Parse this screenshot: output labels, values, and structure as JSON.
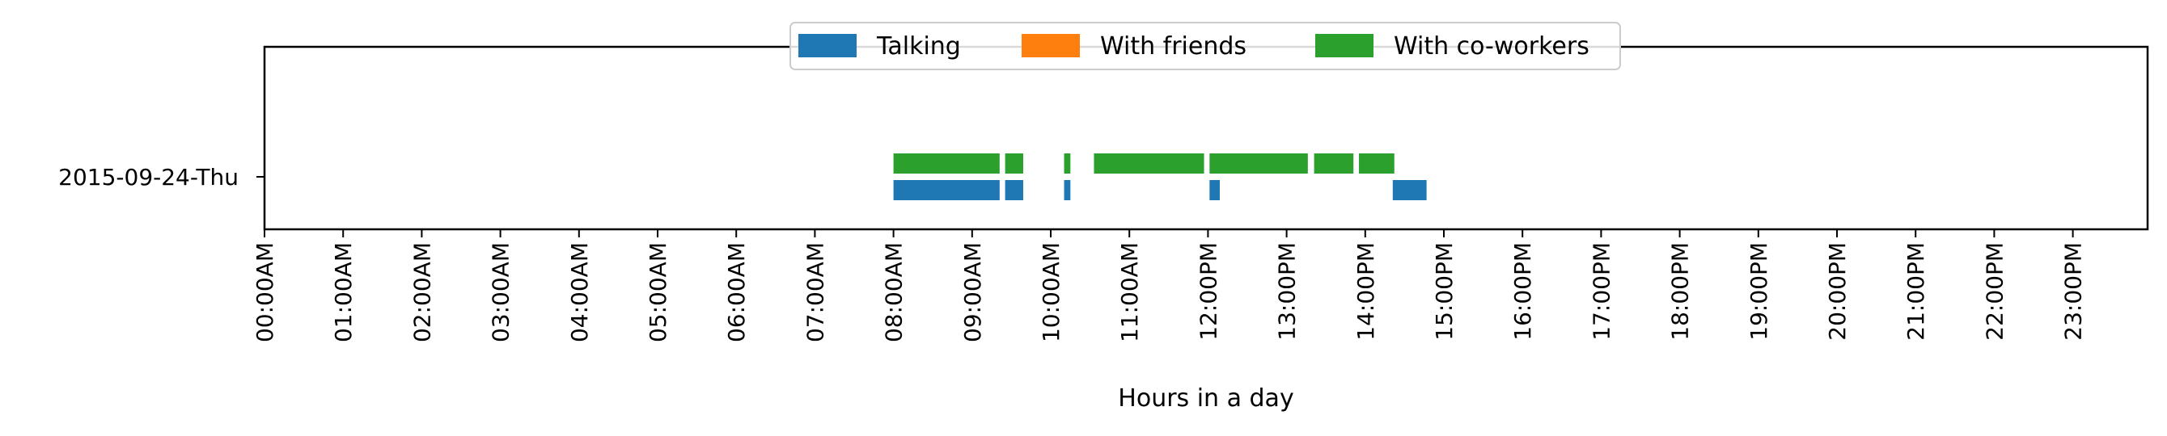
{
  "chart_data": {
    "type": "timeline",
    "title": "",
    "xlabel": "Hours in a day",
    "ylabel": "",
    "xlim": [
      0,
      24
    ],
    "row_label": "2015-09-24-Thu",
    "x_ticks": [
      "00:00AM",
      "01:00AM",
      "02:00AM",
      "03:00AM",
      "04:00AM",
      "05:00AM",
      "06:00AM",
      "07:00AM",
      "08:00AM",
      "09:00AM",
      "10:00AM",
      "11:00AM",
      "12:00PM",
      "13:00PM",
      "14:00PM",
      "15:00PM",
      "16:00PM",
      "17:00PM",
      "18:00PM",
      "19:00PM",
      "20:00PM",
      "21:00PM",
      "22:00PM",
      "23:00PM"
    ],
    "legend": {
      "placement": "top-center"
    },
    "series": [
      {
        "name": "Talking",
        "color": "#1f77b4",
        "intervals": [
          [
            8.0,
            9.35
          ],
          [
            9.42,
            9.65
          ],
          [
            10.17,
            10.25
          ],
          [
            12.02,
            12.15
          ],
          [
            14.35,
            14.78
          ]
        ]
      },
      {
        "name": "With friends",
        "color": "#ff7f0e",
        "intervals": []
      },
      {
        "name": "With co-workers",
        "color": "#2ca02c",
        "intervals": [
          [
            8.0,
            9.35
          ],
          [
            9.42,
            9.65
          ],
          [
            10.17,
            10.25
          ],
          [
            10.55,
            11.95
          ],
          [
            12.02,
            13.27
          ],
          [
            13.35,
            13.85
          ],
          [
            13.92,
            14.37
          ]
        ]
      }
    ]
  }
}
